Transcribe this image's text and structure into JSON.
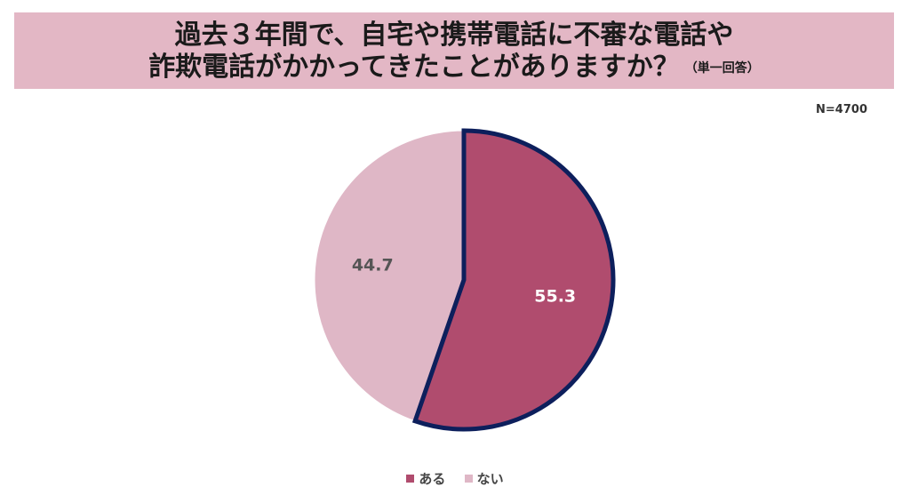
{
  "title": {
    "line1": "過去３年間で、自宅や携帯電話に不審な電話や",
    "line2": "詐欺電話がかかってきたことがありますか？",
    "note": "（単一回答）"
  },
  "n_label": "N=4700",
  "colors": {
    "title_band": "#e3b7c5",
    "aru": "#b04c6e",
    "nai": "#dfb7c6",
    "highlight_border": "#0d1f5c"
  },
  "chart_data": {
    "type": "pie",
    "title": "過去３年間で、自宅や携帯電話に不審な電話や詐欺電話がかかってきたことがありますか？",
    "slices": [
      {
        "label": "ある",
        "value": 55.3,
        "color": "#b04c6e",
        "highlighted": true
      },
      {
        "label": "ない",
        "value": 44.7,
        "color": "#dfb7c6",
        "highlighted": false
      }
    ],
    "start": "12 o'clock",
    "direction": "clockwise",
    "legend_position": "bottom"
  }
}
